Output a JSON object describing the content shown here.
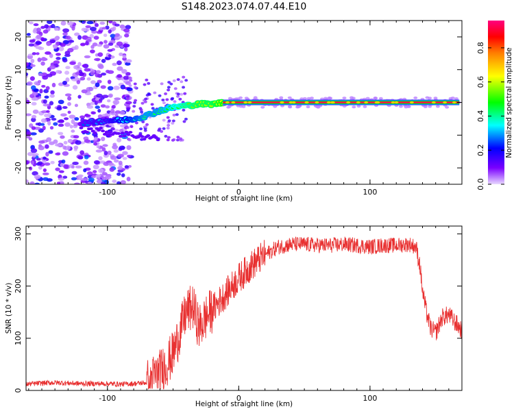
{
  "title": "S148.2023.074.07.44.E10",
  "colors": {
    "snr_line": "#e83030",
    "scatter": "#8a3cf0",
    "colorbar": [
      "#e0c8ff",
      "#7a00ff",
      "#0000ff",
      "#00ffff",
      "#00ff00",
      "#ffff00",
      "#ff8000",
      "#ff0000",
      "#ff00a0"
    ]
  },
  "chart_data": [
    {
      "type": "scatter",
      "name": "spectrogram",
      "xlabel": "Height of straight line (km)",
      "ylabel": "Frequency (Hz)",
      "xlim": [
        -162,
        170
      ],
      "ylim": [
        -25,
        25
      ],
      "xticks": [
        -100,
        0,
        100
      ],
      "yticks": [
        -20,
        -10,
        0,
        10,
        20
      ],
      "description_points": [
        {
          "x": -120,
          "y": -6.5,
          "amp": 0.25
        },
        {
          "x": -110,
          "y": -6.0,
          "amp": 0.3
        },
        {
          "x": -100,
          "y": -5.5,
          "amp": 0.3
        },
        {
          "x": -90,
          "y": -5.5,
          "amp": 0.35
        },
        {
          "x": -80,
          "y": -5.0,
          "amp": 0.4
        },
        {
          "x": -70,
          "y": -4.0,
          "amp": 0.45
        },
        {
          "x": -60,
          "y": -2.5,
          "amp": 0.45
        },
        {
          "x": -50,
          "y": -1.5,
          "amp": 0.5
        },
        {
          "x": -40,
          "y": -1.0,
          "amp": 0.55
        },
        {
          "x": -30,
          "y": -0.5,
          "amp": 0.6
        },
        {
          "x": -20,
          "y": -0.5,
          "amp": 0.6
        },
        {
          "x": -10,
          "y": 0.0,
          "amp": 0.65
        }
      ],
      "carrier": {
        "x_start": -12,
        "x_end": 168,
        "y": 0
      },
      "colorbar": {
        "label": "Normalized spectral amplitude",
        "ticks": [
          "0.0",
          "0.2",
          "0.4",
          "0.6",
          "0.8"
        ],
        "range": [
          0,
          0.96
        ]
      }
    },
    {
      "type": "line",
      "name": "snr",
      "xlabel": "Height of straight line (km)",
      "ylabel": "SNR (10 * v/v)",
      "xlim": [
        -162,
        170
      ],
      "ylim": [
        0,
        315
      ],
      "xticks": [
        -100,
        0,
        100
      ],
      "yticks": [
        0,
        100,
        200,
        300
      ],
      "series": [
        {
          "x": [
            -162,
            -150,
            -140,
            -130,
            -120,
            -110,
            -100,
            -90,
            -80,
            -70,
            -65,
            -60,
            -55,
            -50,
            -45,
            -40,
            -35,
            -30,
            -25,
            -20,
            -15,
            -10,
            -5,
            0,
            10,
            20,
            30,
            40,
            50,
            60,
            70,
            80,
            90,
            100,
            110,
            120,
            130,
            135,
            138,
            140,
            143,
            146,
            150,
            155,
            160,
            165,
            170
          ],
          "y": [
            12,
            14,
            15,
            14,
            13,
            13,
            13,
            12,
            13,
            15,
            25,
            35,
            50,
            70,
            110,
            150,
            160,
            120,
            140,
            155,
            170,
            185,
            200,
            215,
            240,
            260,
            275,
            280,
            280,
            278,
            278,
            280,
            278,
            275,
            278,
            278,
            280,
            275,
            240,
            190,
            150,
            120,
            110,
            140,
            145,
            130,
            115
          ]
        }
      ]
    }
  ]
}
